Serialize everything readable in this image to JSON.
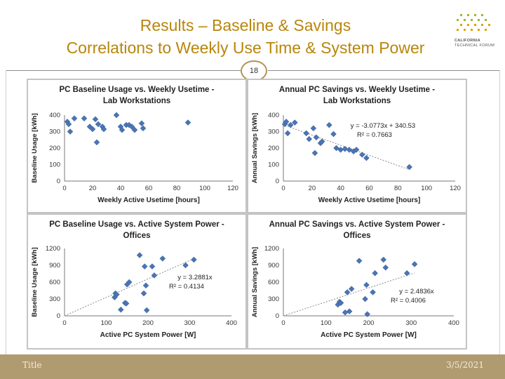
{
  "slide": {
    "title_line1": "Results – Baseline & Savings",
    "title_line2": "Correlations to Weekly Use Time & System Power",
    "page_number": "18",
    "footer_left": "Title",
    "footer_right": "3/5/2021",
    "logo_line1": "CALIFORNIA",
    "logo_line2": "TECHNICAL FORUM",
    "accent_color": "#b8860b",
    "footer_color": "#b09a70"
  },
  "chart_data": [
    {
      "type": "scatter",
      "title": "PC Baseline Usage vs. Weekly Usetime -\nLab Workstations",
      "xlabel": "Weekly Active Usetime [hours]",
      "ylabel": "Baseline Usage [kWh]",
      "xlim": [
        0,
        120
      ],
      "ylim": [
        0,
        400
      ],
      "xticks": [
        0,
        20,
        40,
        60,
        80,
        100,
        120
      ],
      "yticks": [
        0,
        100,
        200,
        300,
        400
      ],
      "points": [
        [
          2,
          360
        ],
        [
          3,
          345
        ],
        [
          4,
          300
        ],
        [
          7,
          380
        ],
        [
          14,
          380
        ],
        [
          18,
          330
        ],
        [
          20,
          315
        ],
        [
          22,
          375
        ],
        [
          23,
          235
        ],
        [
          24,
          345
        ],
        [
          27,
          330
        ],
        [
          28,
          315
        ],
        [
          37,
          400
        ],
        [
          40,
          330
        ],
        [
          41,
          310
        ],
        [
          44,
          340
        ],
        [
          46,
          340
        ],
        [
          48,
          330
        ],
        [
          50,
          310
        ],
        [
          55,
          350
        ],
        [
          56,
          320
        ],
        [
          88,
          355
        ]
      ],
      "trendline": null,
      "equation": "",
      "r2": ""
    },
    {
      "type": "scatter",
      "title": "Annual PC Savings vs. Weekly Usetime -\nLab Workstations",
      "xlabel": "Weekly Active Usetime [hours]",
      "ylabel": "Annual Savings [kWh]",
      "xlim": [
        0,
        120
      ],
      "ylim": [
        0,
        400
      ],
      "xticks": [
        0,
        20,
        40,
        60,
        80,
        100,
        120
      ],
      "yticks": [
        0,
        100,
        200,
        300,
        400
      ],
      "points": [
        [
          1,
          345
        ],
        [
          2,
          360
        ],
        [
          3,
          290
        ],
        [
          5,
          340
        ],
        [
          8,
          355
        ],
        [
          16,
          290
        ],
        [
          18,
          255
        ],
        [
          21,
          320
        ],
        [
          22,
          170
        ],
        [
          23,
          265
        ],
        [
          26,
          230
        ],
        [
          27,
          240
        ],
        [
          32,
          340
        ],
        [
          35,
          285
        ],
        [
          37,
          200
        ],
        [
          40,
          190
        ],
        [
          43,
          195
        ],
        [
          46,
          190
        ],
        [
          49,
          180
        ],
        [
          51,
          190
        ],
        [
          55,
          160
        ],
        [
          58,
          140
        ],
        [
          88,
          85
        ]
      ],
      "trendline": {
        "slope": -3.0773,
        "intercept": 340.53
      },
      "equation": "y = -3.0773x + 340.53",
      "r2": "R² = 0.7663"
    },
    {
      "type": "scatter",
      "title": "PC Baseline Usage vs. Active System Power -\nOffices",
      "xlabel": "Active PC System Power [W]",
      "ylabel": "Baseline Usage [kWh]",
      "xlim": [
        0,
        400
      ],
      "ylim": [
        0,
        1200
      ],
      "xticks": [
        0,
        100,
        200,
        300,
        400
      ],
      "yticks": [
        0,
        300,
        600,
        900,
        1200
      ],
      "points": [
        [
          120,
          330
        ],
        [
          122,
          400
        ],
        [
          125,
          380
        ],
        [
          135,
          110
        ],
        [
          145,
          230
        ],
        [
          148,
          220
        ],
        [
          150,
          560
        ],
        [
          155,
          600
        ],
        [
          180,
          1080
        ],
        [
          190,
          400
        ],
        [
          192,
          880
        ],
        [
          195,
          540
        ],
        [
          197,
          100
        ],
        [
          210,
          880
        ],
        [
          215,
          720
        ],
        [
          235,
          1020
        ],
        [
          290,
          900
        ],
        [
          310,
          1000
        ]
      ],
      "trendline": {
        "slope": 3.2881,
        "intercept": 0
      },
      "equation": "y = 3.2881x",
      "r2": "R² = 0.4134"
    },
    {
      "type": "scatter",
      "title": "Annual PC Savings vs. Active System Power -\nOffices",
      "xlabel": "Active PC System Power [W]",
      "ylabel": "Annual Savings [kWh]",
      "xlim": [
        0,
        400
      ],
      "ylim": [
        0,
        1200
      ],
      "xticks": [
        0,
        100,
        200,
        300,
        400
      ],
      "yticks": [
        0,
        300,
        600,
        900,
        1200
      ],
      "points": [
        [
          128,
          200
        ],
        [
          132,
          250
        ],
        [
          135,
          230
        ],
        [
          145,
          60
        ],
        [
          150,
          420
        ],
        [
          155,
          80
        ],
        [
          160,
          480
        ],
        [
          178,
          980
        ],
        [
          192,
          300
        ],
        [
          195,
          550
        ],
        [
          197,
          30
        ],
        [
          210,
          420
        ],
        [
          215,
          760
        ],
        [
          235,
          1000
        ],
        [
          240,
          860
        ],
        [
          290,
          760
        ],
        [
          308,
          920
        ]
      ],
      "trendline": {
        "slope": 2.4836,
        "intercept": 0
      },
      "equation": "y = 2.4836x",
      "r2": "R² = 0.4006"
    }
  ]
}
